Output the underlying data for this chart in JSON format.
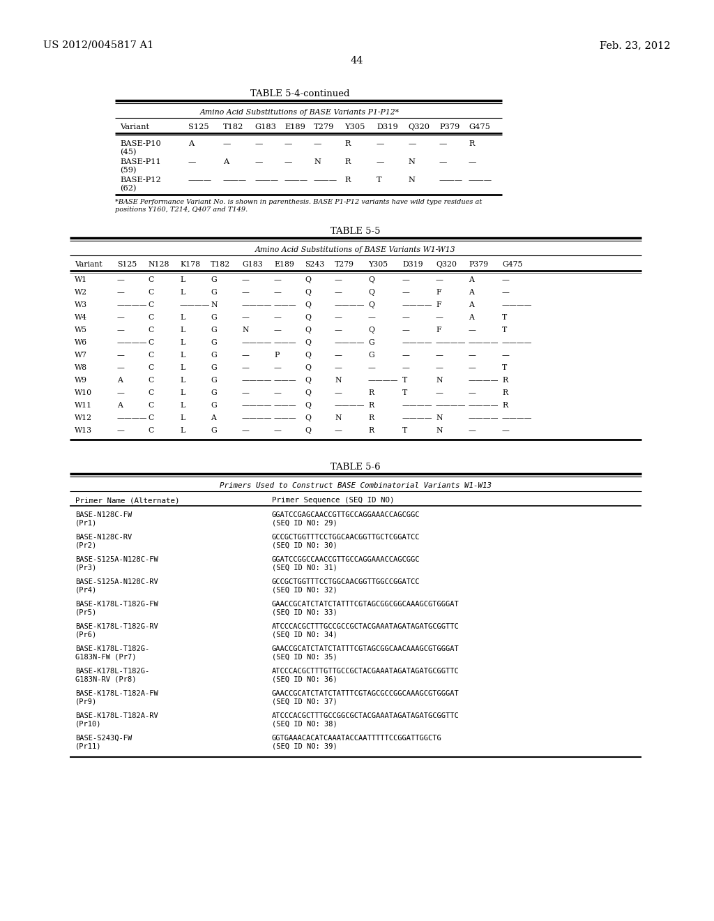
{
  "page_header_left": "US 2012/0045817 A1",
  "page_header_right": "Feb. 23, 2012",
  "page_number": "44",
  "table54_title": "TABLE 5-4-continued",
  "table54_subtitle": "Amino Acid Substitutions of BASE Variants P1-P12*",
  "table54_columns": [
    "Variant",
    "S125",
    "T182",
    "G183",
    "E189",
    "T279",
    "Y305",
    "D319",
    "Q320",
    "P379",
    "G475"
  ],
  "table54_rows": [
    [
      "BASE-P10\n(45)",
      "A",
      "—",
      "—",
      "—",
      "—",
      "R",
      "—",
      "—",
      "—",
      "R"
    ],
    [
      "BASE-P11\n(59)",
      "—",
      "A",
      "—",
      "—",
      "N",
      "R",
      "—",
      "N",
      "—",
      "—"
    ],
    [
      "BASE-P12\n(62)",
      "———",
      "———",
      "———",
      "———",
      "———",
      "R",
      "T",
      "N",
      "———",
      "———"
    ]
  ],
  "table54_footnote": "*BASE Performance Variant No. is shown in parenthesis. BASE P1-P12 variants have wild type residues at\npositions Y160, T214, Q407 and T149.",
  "table55_title": "TABLE 5-5",
  "table55_subtitle": "Amino Acid Substitutions of BASE Variants W1-W13",
  "table55_columns": [
    "Variant",
    "S125",
    "N128",
    "K178",
    "T182",
    "G183",
    "E189",
    "S243",
    "T279",
    "Y305",
    "D319",
    "Q320",
    "P379",
    "G475"
  ],
  "table55_rows": [
    [
      "W1",
      "—",
      "C",
      "L",
      "G",
      "—",
      "—",
      "Q",
      "—",
      "Q",
      "—",
      "—",
      "A",
      "—"
    ],
    [
      "W2",
      "—",
      "C",
      "L",
      "G",
      "—",
      "—",
      "Q",
      "—",
      "Q",
      "—",
      "F",
      "A",
      "—"
    ],
    [
      "W3",
      "————",
      "C",
      "————",
      "N",
      "————",
      "———",
      "Q",
      "————",
      "Q",
      "————",
      "F",
      "A",
      "————"
    ],
    [
      "W4",
      "—",
      "C",
      "L",
      "G",
      "—",
      "—",
      "Q",
      "—",
      "—",
      "—",
      "—",
      "A",
      "T"
    ],
    [
      "W5",
      "—",
      "C",
      "L",
      "G",
      "N",
      "—",
      "Q",
      "—",
      "Q",
      "—",
      "F",
      "—",
      "T"
    ],
    [
      "W6",
      "————",
      "C",
      "L",
      "G",
      "————",
      "———",
      "Q",
      "————",
      "G",
      "————",
      "————",
      "————",
      "————"
    ],
    [
      "W7",
      "—",
      "C",
      "L",
      "G",
      "—",
      "P",
      "Q",
      "—",
      "G",
      "—",
      "—",
      "—",
      "—"
    ],
    [
      "W8",
      "—",
      "C",
      "L",
      "G",
      "—",
      "—",
      "Q",
      "—",
      "—",
      "—",
      "—",
      "—",
      "T"
    ],
    [
      "W9",
      "A",
      "C",
      "L",
      "G",
      "————",
      "———",
      "Q",
      "N",
      "————",
      "T",
      "N",
      "————",
      "R"
    ],
    [
      "W10",
      "—",
      "C",
      "L",
      "G",
      "—",
      "—",
      "Q",
      "—",
      "R",
      "T",
      "—",
      "—",
      "R"
    ],
    [
      "W11",
      "A",
      "C",
      "L",
      "G",
      "————",
      "———",
      "Q",
      "————",
      "R",
      "————",
      "————",
      "————",
      "R"
    ],
    [
      "W12",
      "————",
      "C",
      "L",
      "A",
      "————",
      "———",
      "Q",
      "N",
      "R",
      "————",
      "N",
      "————",
      "————"
    ],
    [
      "W13",
      "—",
      "C",
      "L",
      "G",
      "—",
      "—",
      "Q",
      "—",
      "R",
      "T",
      "N",
      "—",
      "—"
    ]
  ],
  "table56_title": "TABLE 5-6",
  "table56_subtitle": "Primers Used to Construct BASE Combinatorial Variants W1-W13",
  "table56_col1": "Primer Name (Alternate)",
  "table56_col2": "Primer Sequence (SEQ ID NO)",
  "table56_rows": [
    [
      "BASE-N128C-FW\n(Pr1)",
      "GGATCCGAGCAACCGTTGCCAGGAAACCAGCGGC\n(SEQ ID NO: 29)"
    ],
    [
      "BASE-N128C-RV\n(Pr2)",
      "GCCGCTGGTTTCCTGGCAACGGTTGCTCGGATCC\n(SEQ ID NO: 30)"
    ],
    [
      "BASE-S125A-N128C-FW\n(Pr3)",
      "GGATCCGGCCAACCGTTGCCAGGAAACCAGCGGC\n(SEQ ID NO: 31)"
    ],
    [
      "BASE-S125A-N128C-RV\n(Pr4)",
      "GCCGCTGGTTTCCTGGCAACGGTTGGCCGGATCC\n(SEQ ID NO: 32)"
    ],
    [
      "BASE-K178L-T182G-FW\n(Pr5)",
      "GAACCGCATCTATCTATTTCGTAGCGGCGGCAAAGCGTGGGAT\n(SEQ ID NO: 33)"
    ],
    [
      "BASE-K178L-T182G-RV\n(Pr6)",
      "ATCCCACGCTTTGCCGCCGCTACGAAATAGATAGATGCGGTTC\n(SEQ ID NO: 34)"
    ],
    [
      "BASE-K178L-T182G-\nG183N-FW (Pr7)",
      "GAACCGCATCTATCTATTTCGTAGCGGCAACAAAGCGTGGGAT\n(SEQ ID NO: 35)"
    ],
    [
      "BASE-K178L-T182G-\nG183N-RV (Pr8)",
      "ATCCCACGCTTTGTTGCCGCTACGAAATAGATAGATGCGGTTC\n(SEQ ID NO: 36)"
    ],
    [
      "BASE-K178L-T182A-FW\n(Pr9)",
      "GAACCGCATCTATCTATTTCGTAGCGCCGGCAAAGCGTGGGAT\n(SEQ ID NO: 37)"
    ],
    [
      "BASE-K178L-T182A-RV\n(Pr10)",
      "ATCCCACGCTTTGCCGGCGCTACGAAATAGATAGATGCGGTTC\n(SEQ ID NO: 38)"
    ],
    [
      "BASE-S243Q-FW\n(Pr11)",
      "GGTGAAACACATCAAATACCAATTTTTCCGGATTGGCTG\n(SEQ ID NO: 39)"
    ]
  ],
  "bg_color": "#ffffff"
}
